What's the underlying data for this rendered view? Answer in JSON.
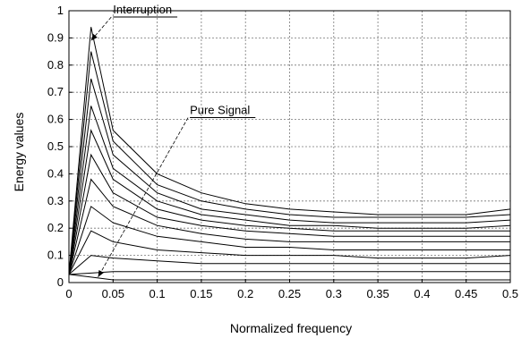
{
  "chart_data": {
    "type": "line",
    "title": "",
    "xlabel": "Normalized frequency",
    "ylabel": "Energy values",
    "xlim": [
      0,
      0.5
    ],
    "ylim": [
      0,
      1
    ],
    "xticks": [
      0,
      0.05,
      0.1,
      0.15,
      0.2,
      0.25,
      0.3,
      0.35,
      0.4,
      0.45,
      0.5
    ],
    "xtick_labels": [
      "0",
      "0.05",
      "0.1",
      "0.15",
      "0.2",
      "0.25",
      "0.3",
      "0.35",
      "0.4",
      "0.45",
      "0.5"
    ],
    "yticks": [
      0,
      0.1,
      0.2,
      0.3,
      0.4,
      0.5,
      0.6,
      0.7,
      0.8,
      0.9,
      1
    ],
    "ytick_labels": [
      "0",
      "0.1",
      "0.2",
      "0.3",
      "0.4",
      "0.5",
      "0.6",
      "0.7",
      "0.8",
      "0.9",
      "1"
    ],
    "grid": true,
    "line_color": "#000000",
    "x": [
      0,
      0.025,
      0.05,
      0.1,
      0.15,
      0.2,
      0.25,
      0.3,
      0.35,
      0.4,
      0.45,
      0.5
    ],
    "series": [
      {
        "values": [
          0.03,
          0.94,
          0.56,
          0.4,
          0.33,
          0.29,
          0.27,
          0.26,
          0.25,
          0.25,
          0.25,
          0.27
        ]
      },
      {
        "values": [
          0.03,
          0.85,
          0.52,
          0.36,
          0.3,
          0.27,
          0.25,
          0.24,
          0.24,
          0.24,
          0.24,
          0.25
        ]
      },
      {
        "values": [
          0.03,
          0.75,
          0.47,
          0.33,
          0.27,
          0.25,
          0.23,
          0.22,
          0.22,
          0.22,
          0.22,
          0.23
        ]
      },
      {
        "values": [
          0.03,
          0.65,
          0.42,
          0.3,
          0.25,
          0.23,
          0.21,
          0.21,
          0.2,
          0.2,
          0.2,
          0.21
        ]
      },
      {
        "values": [
          0.03,
          0.56,
          0.38,
          0.27,
          0.23,
          0.21,
          0.2,
          0.19,
          0.19,
          0.19,
          0.19,
          0.19
        ]
      },
      {
        "values": [
          0.03,
          0.47,
          0.33,
          0.24,
          0.21,
          0.19,
          0.18,
          0.17,
          0.17,
          0.17,
          0.17,
          0.17
        ]
      },
      {
        "values": [
          0.03,
          0.38,
          0.28,
          0.21,
          0.18,
          0.16,
          0.15,
          0.15,
          0.15,
          0.15,
          0.15,
          0.15
        ]
      },
      {
        "values": [
          0.03,
          0.28,
          0.22,
          0.17,
          0.15,
          0.13,
          0.13,
          0.12,
          0.12,
          0.12,
          0.12,
          0.12
        ]
      },
      {
        "values": [
          0.03,
          0.19,
          0.15,
          0.12,
          0.11,
          0.1,
          0.1,
          0.1,
          0.09,
          0.09,
          0.09,
          0.1
        ]
      },
      {
        "values": [
          0.03,
          0.1,
          0.09,
          0.08,
          0.07,
          0.07,
          0.07,
          0.07,
          0.07,
          0.07,
          0.07,
          0.07
        ]
      },
      {
        "values": [
          0.03,
          0.035,
          0.04,
          0.04,
          0.04,
          0.04,
          0.04,
          0.04,
          0.04,
          0.04,
          0.04,
          0.04
        ]
      },
      {
        "values": [
          0.03,
          0.02,
          0.01,
          0.01,
          0.01,
          0.01,
          0.01,
          0.01,
          0.01,
          0.01,
          0.01,
          0.01
        ]
      }
    ],
    "annotations": [
      {
        "text": "Interruption",
        "target": [
          0.025,
          0.89
        ],
        "text_at": [
          0.05,
          0.99
        ]
      },
      {
        "text": "Pure Signal",
        "target": [
          0.033,
          0.02
        ],
        "text_at": [
          0.137,
          0.62
        ]
      }
    ]
  }
}
